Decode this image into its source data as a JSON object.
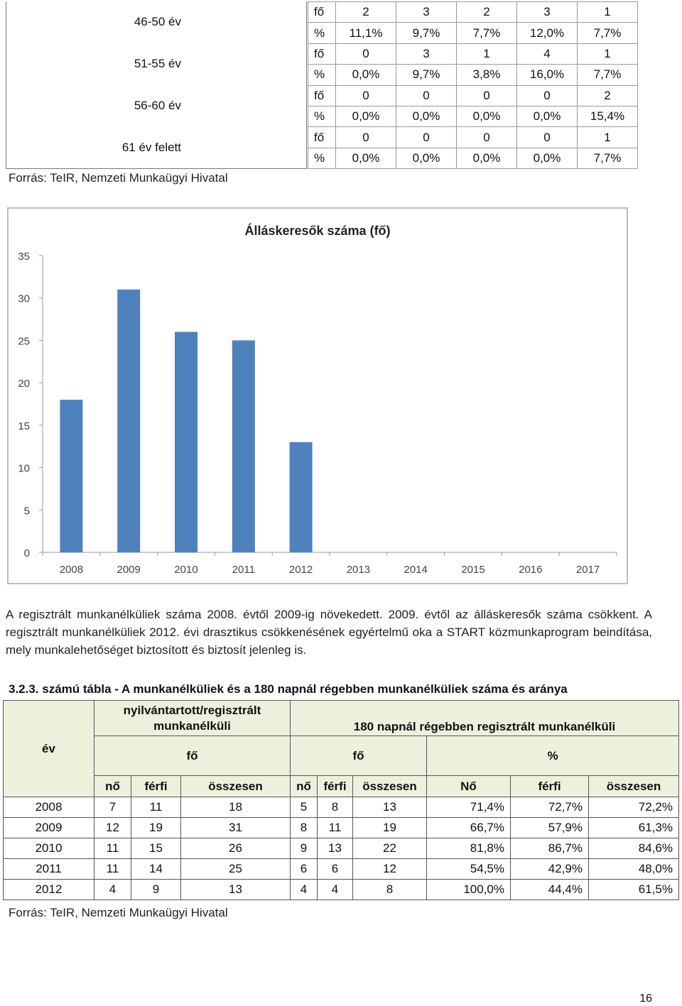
{
  "age_table": {
    "rows": [
      {
        "label": "46-50 év",
        "fo": [
          "2",
          "3",
          "2",
          "3",
          "1"
        ],
        "pct": [
          "11,1%",
          "9,7%",
          "7,7%",
          "12,0%",
          "7,7%"
        ]
      },
      {
        "label": "51-55 év",
        "fo": [
          "0",
          "3",
          "1",
          "4",
          "1"
        ],
        "pct": [
          "0,0%",
          "9,7%",
          "3,8%",
          "16,0%",
          "7,7%"
        ]
      },
      {
        "label": "56-60 év",
        "fo": [
          "0",
          "0",
          "0",
          "0",
          "2"
        ],
        "pct": [
          "0,0%",
          "0,0%",
          "0,0%",
          "0,0%",
          "15,4%"
        ]
      },
      {
        "label": "61 év felett",
        "fo": [
          "0",
          "0",
          "0",
          "0",
          "1"
        ],
        "pct": [
          "0,0%",
          "0,0%",
          "0,0%",
          "0,0%",
          "7,7%"
        ]
      }
    ],
    "unit_fo": "fő",
    "unit_pct": "%",
    "source": "Forrás: TeIR, Nemzeti Munkaügyi Hivatal"
  },
  "chart_data": {
    "type": "bar",
    "title": "Álláskeresők száma (fő)",
    "categories": [
      "2008",
      "2009",
      "2010",
      "2011",
      "2012",
      "2013",
      "2014",
      "2015",
      "2016",
      "2017"
    ],
    "values": [
      18,
      31,
      26,
      25,
      13,
      null,
      null,
      null,
      null,
      null
    ],
    "ylim": [
      0,
      35
    ],
    "yticks": [
      "0",
      "5",
      "10",
      "15",
      "20",
      "25",
      "30",
      "35"
    ],
    "xlabel": "",
    "ylabel": "",
    "grid": false,
    "bar_color": "#4f81bd"
  },
  "paragraph": "A regisztrált munkanélküliek száma 2008. évtől 2009-ig növekedett. 2009. évtől az álláskeresők száma csökkent. A regisztrált munkanélküliek 2012. évi drasztikus csökkenésének egyértelmű oka a START közmunkaprogram beindítása, mely munkalehetőséget biztosított és biztosít jelenleg is.",
  "table2": {
    "caption": "3.2.3. számú tábla - A munkanélküliek és a 180 napnál régebben munkanélküliek száma és aránya",
    "h_ev": "év",
    "h_registered": "nyilvántartott/regisztrált munkanélküli",
    "h_180": "180 napnál régebben regisztrált munkanélküli",
    "h_fo1": "fő",
    "h_fo2": "fő",
    "h_pct": "%",
    "sub": [
      "nő",
      "férfi",
      "összesen",
      "nő",
      "férfi",
      "összesen",
      "Nő",
      "férfi",
      "összesen"
    ],
    "rows": [
      [
        "2008",
        "7",
        "11",
        "18",
        "5",
        "8",
        "13",
        "71,4%",
        "72,7%",
        "72,2%"
      ],
      [
        "2009",
        "12",
        "19",
        "31",
        "8",
        "11",
        "19",
        "66,7%",
        "57,9%",
        "61,3%"
      ],
      [
        "2010",
        "11",
        "15",
        "26",
        "9",
        "13",
        "22",
        "81,8%",
        "86,7%",
        "84,6%"
      ],
      [
        "2011",
        "11",
        "14",
        "25",
        "6",
        "6",
        "12",
        "54,5%",
        "42,9%",
        "48,0%"
      ],
      [
        "2012",
        "4",
        "9",
        "13",
        "4",
        "4",
        "8",
        "100,0%",
        "44,4%",
        "61,5%"
      ]
    ],
    "source": "Forrás: TeIR, Nemzeti Munkaügyi Hivatal"
  },
  "page_number": "16"
}
